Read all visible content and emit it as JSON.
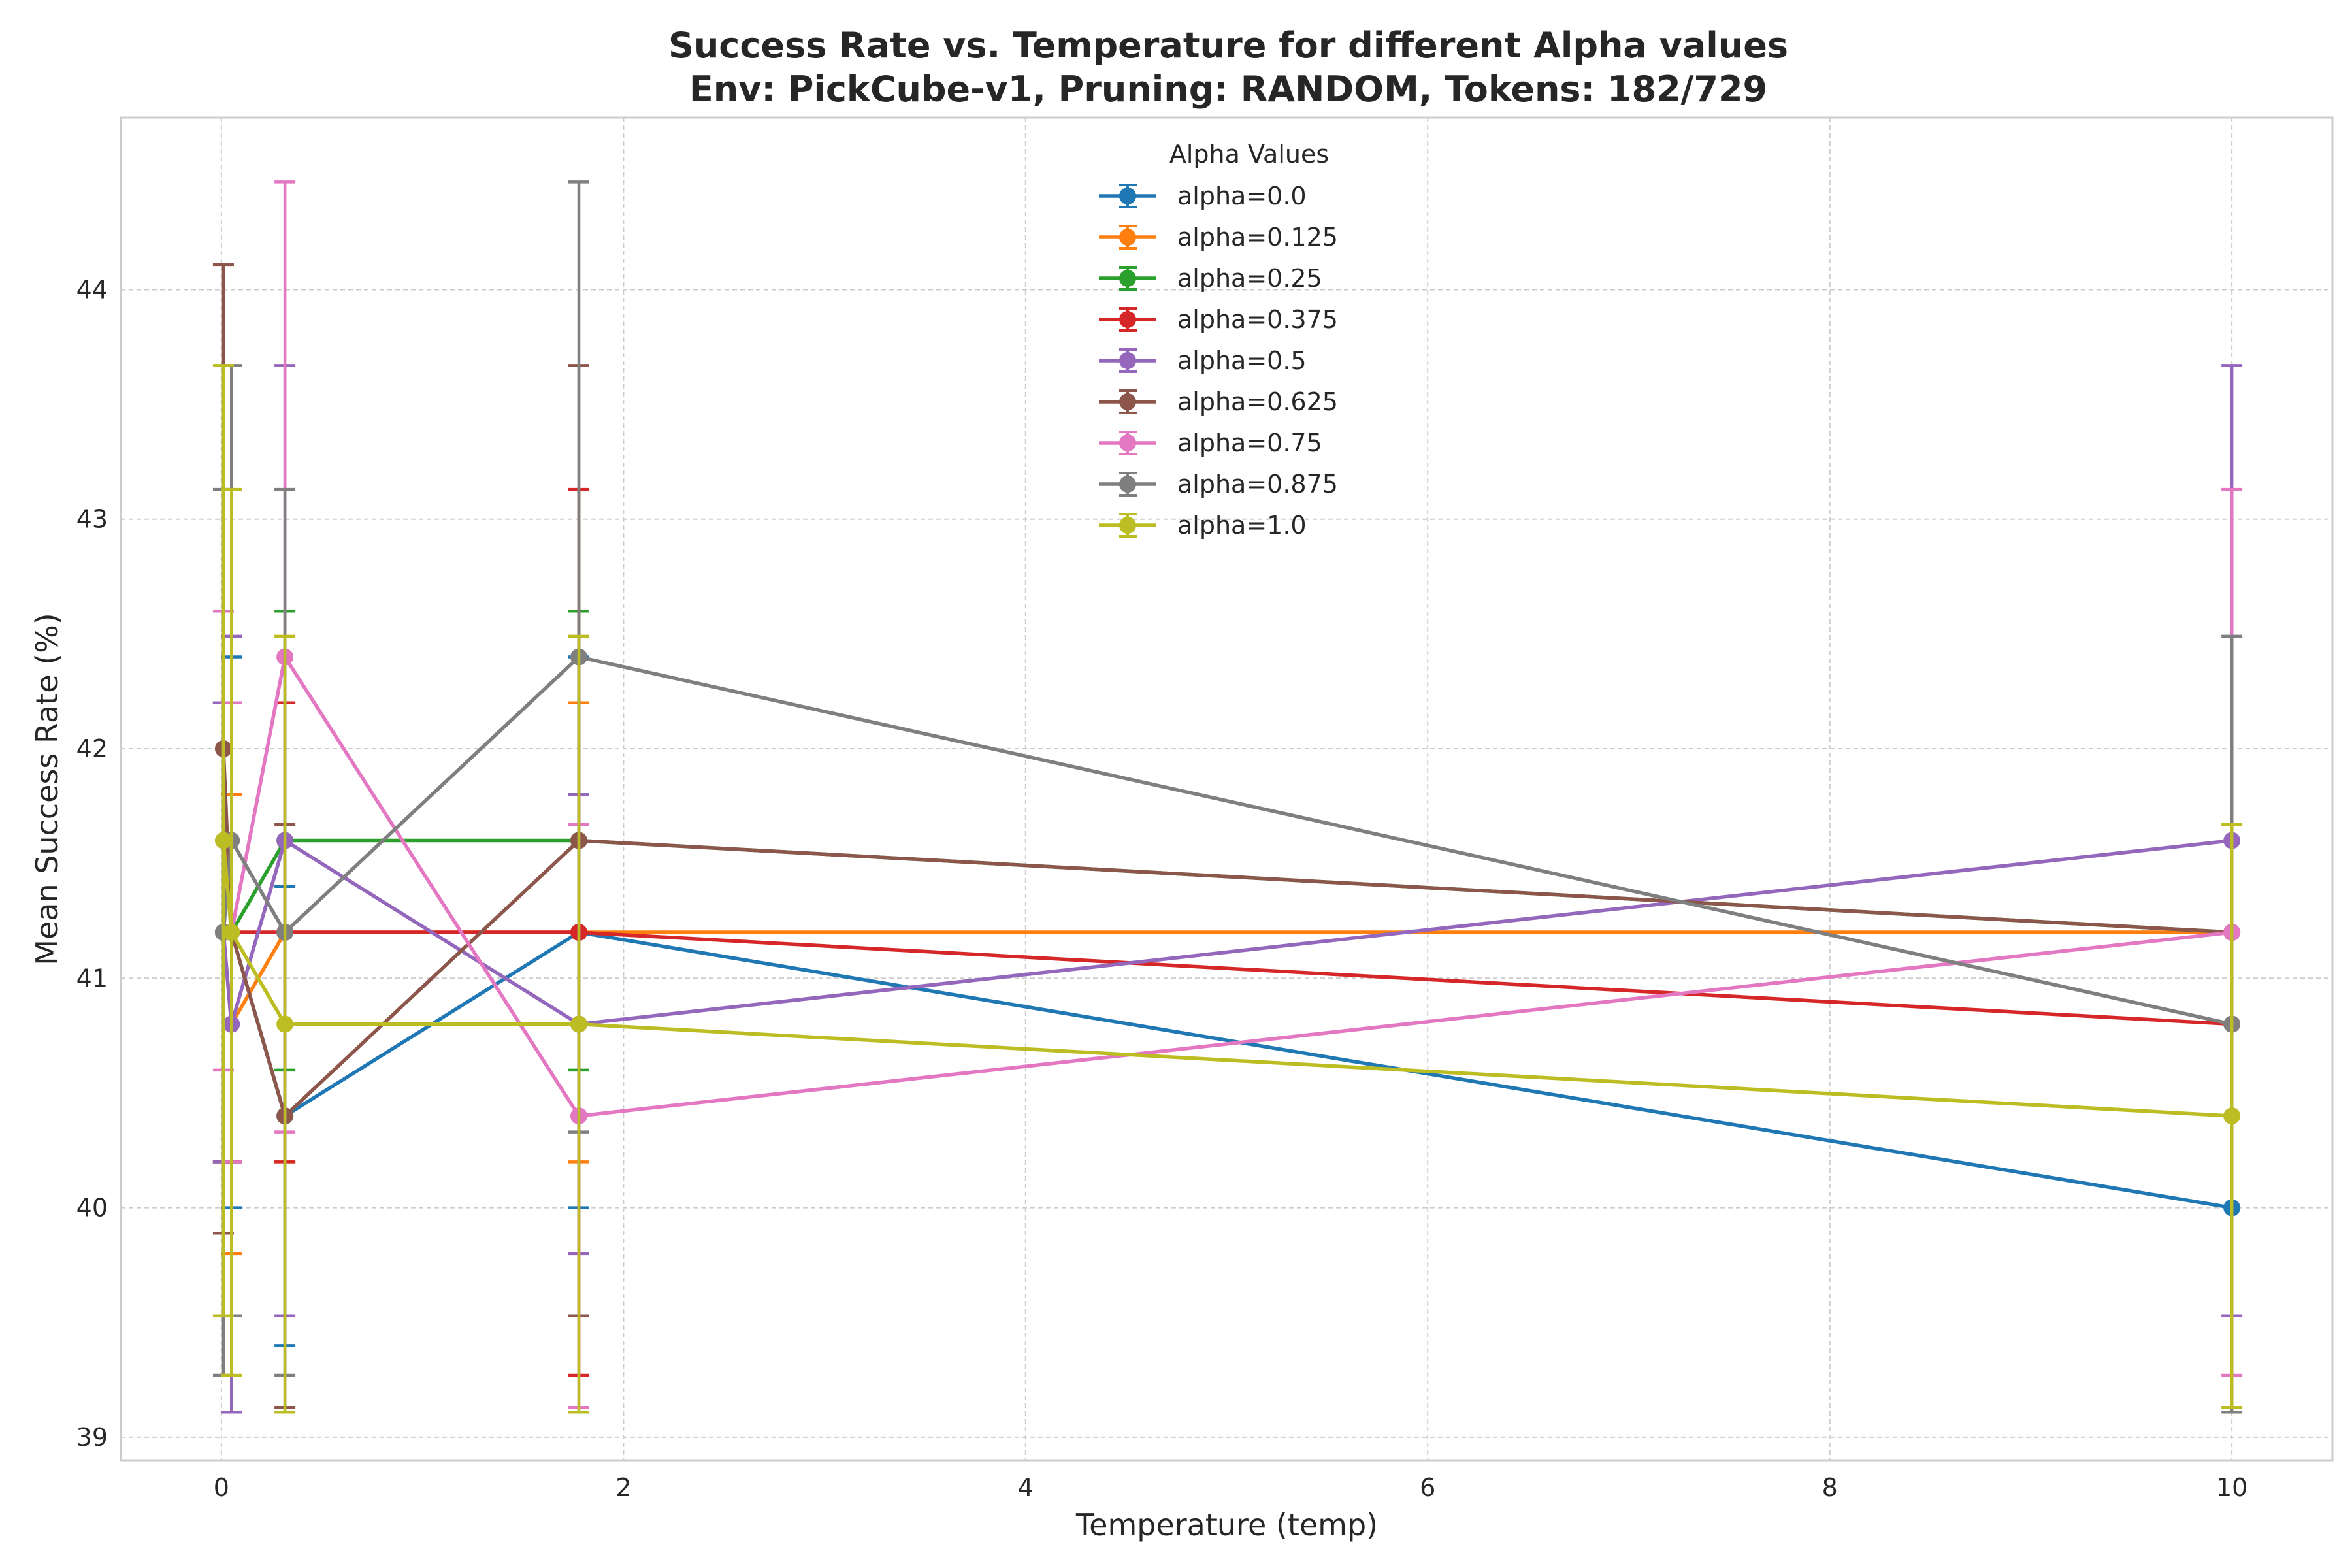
{
  "chart_data": {
    "type": "line",
    "title_line1": "Success Rate vs. Temperature for different Alpha values",
    "title_line2": "Env: PickCube-v1, Pruning: RANDOM, Tokens: 182/729",
    "xlabel": "Temperature (temp)",
    "ylabel": "Mean Success Rate (%)",
    "xlim": [
      -0.5,
      10.5
    ],
    "ylim": [
      38.9,
      44.75
    ],
    "xticks": [
      0,
      2,
      4,
      6,
      8,
      10
    ],
    "yticks": [
      39,
      40,
      41,
      42,
      43,
      44
    ],
    "grid": true,
    "error_bars": true,
    "legend": {
      "title": "Alpha Values",
      "placement": "upper-center"
    },
    "x": [
      0.01,
      0.05,
      0.316,
      1.778,
      10
    ],
    "series": [
      {
        "name": "alpha=0.0",
        "color": "#1f77b4",
        "values": [
          41.2,
          41.2,
          40.4,
          41.2,
          40.0
        ],
        "err": [
          1.0,
          1.2,
          1.0,
          1.2,
          0.0
        ]
      },
      {
        "name": "alpha=0.125",
        "color": "#ff7f0e",
        "values": [
          41.2,
          40.8,
          41.2,
          41.2,
          41.2
        ],
        "err": [
          1.0,
          1.0,
          1.0,
          1.0,
          0.0
        ]
      },
      {
        "name": "alpha=0.25",
        "color": "#2ca02c",
        "values": [
          41.2,
          41.2,
          41.6,
          41.6,
          41.2
        ],
        "err": [
          1.0,
          1.0,
          1.0,
          1.0,
          0.0
        ]
      },
      {
        "name": "alpha=0.375",
        "color": "#d62728",
        "values": [
          41.2,
          41.2,
          41.2,
          41.2,
          40.8
        ],
        "err": [
          1.0,
          1.0,
          1.0,
          1.93,
          0.0
        ]
      },
      {
        "name": "alpha=0.5",
        "color": "#9467bd",
        "values": [
          41.2,
          40.8,
          41.6,
          40.8,
          41.6
        ],
        "err": [
          1.0,
          1.69,
          2.07,
          1.0,
          2.07
        ]
      },
      {
        "name": "alpha=0.625",
        "color": "#8c564b",
        "values": [
          42.0,
          41.2,
          40.4,
          41.6,
          41.2
        ],
        "err": [
          2.11,
          1.0,
          1.27,
          2.07,
          0.0
        ]
      },
      {
        "name": "alpha=0.75",
        "color": "#e377c2",
        "values": [
          41.6,
          41.2,
          42.4,
          40.4,
          41.2
        ],
        "err": [
          1.0,
          1.0,
          2.07,
          1.27,
          1.93
        ]
      },
      {
        "name": "alpha=0.875",
        "color": "#7f7f7f",
        "values": [
          41.2,
          41.6,
          41.2,
          42.4,
          40.8
        ],
        "err": [
          1.93,
          2.07,
          1.93,
          2.07,
          1.69
        ]
      },
      {
        "name": "alpha=1.0",
        "color": "#bcbd22",
        "values": [
          41.6,
          41.2,
          40.8,
          40.8,
          40.4
        ],
        "err": [
          2.07,
          1.93,
          1.69,
          1.69,
          1.27
        ]
      }
    ]
  }
}
